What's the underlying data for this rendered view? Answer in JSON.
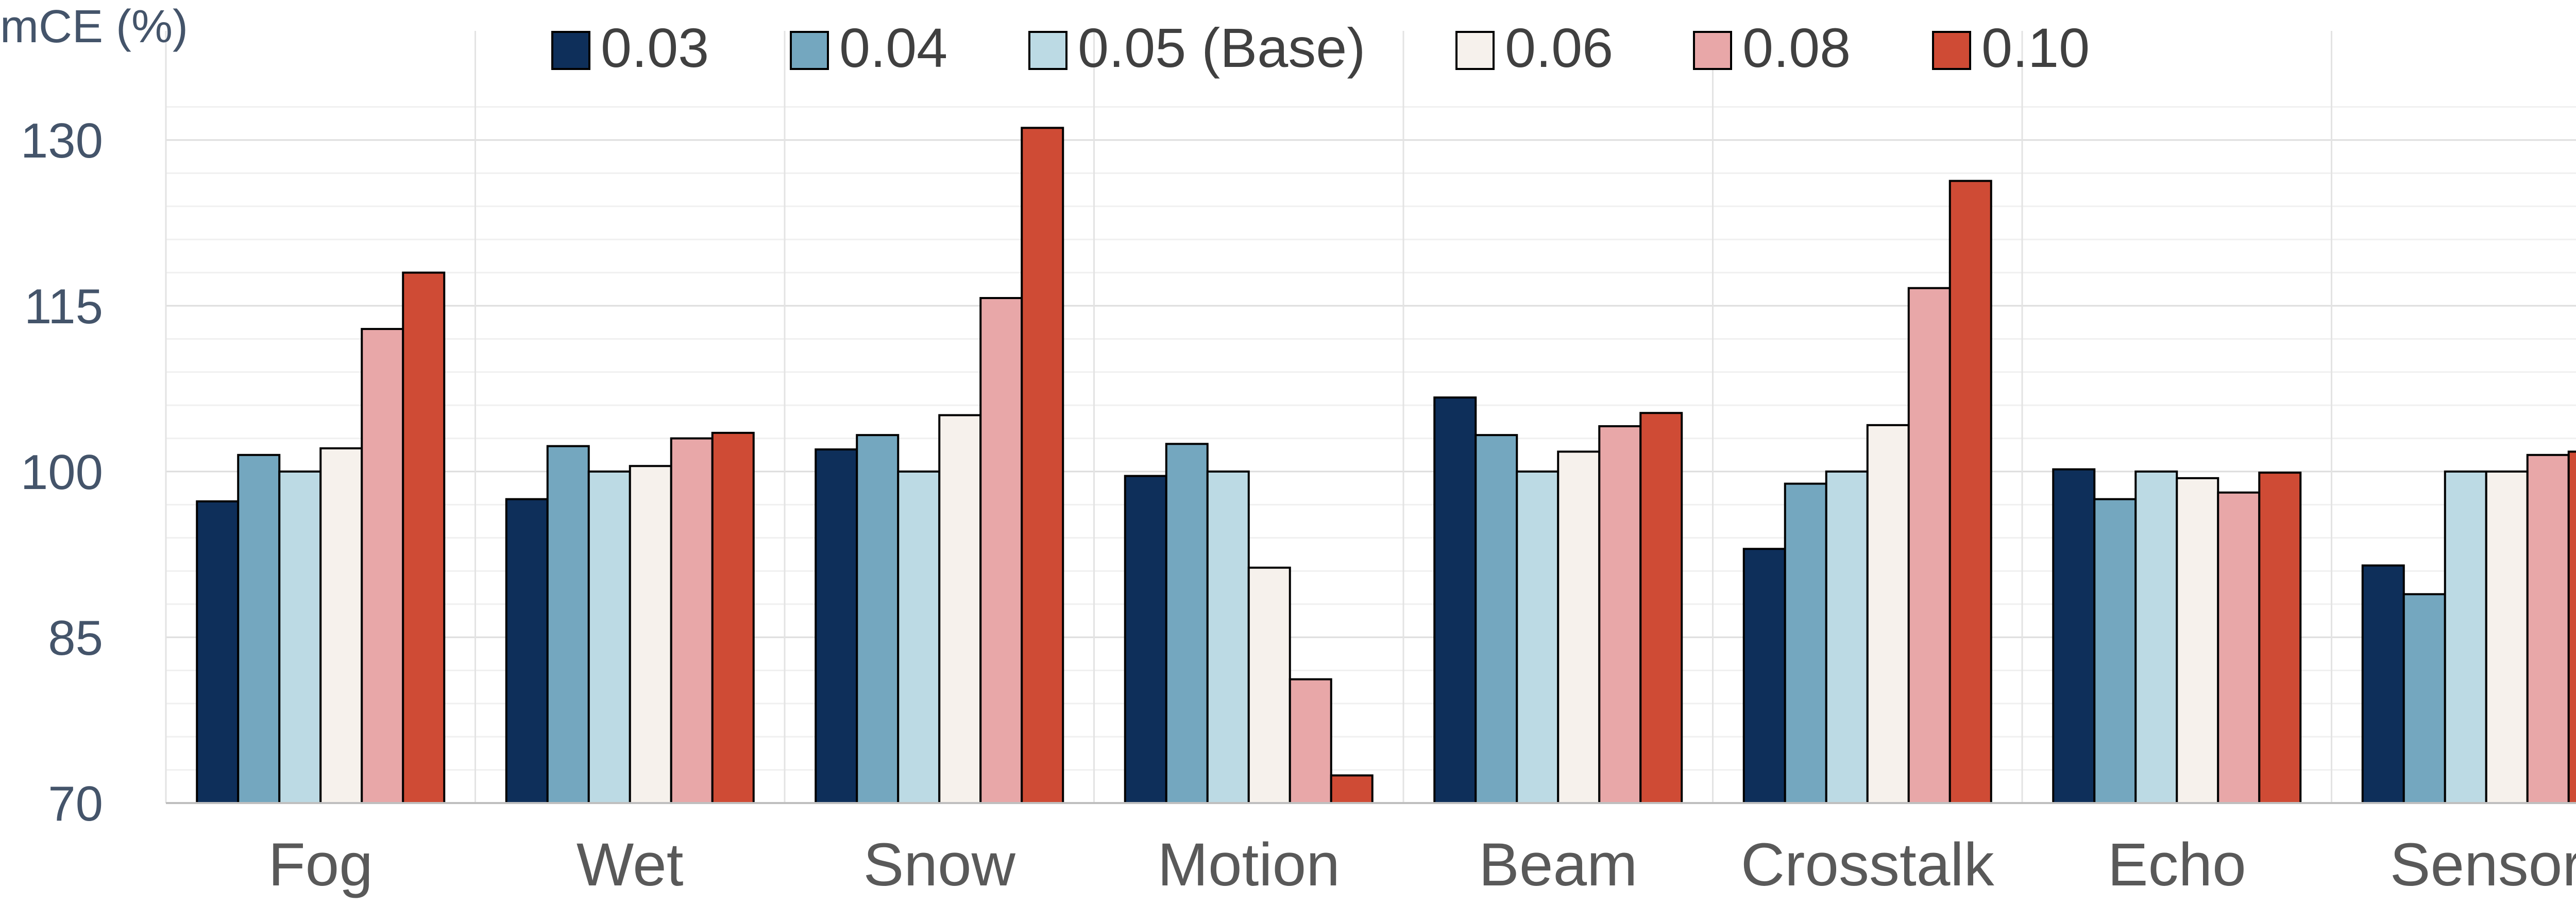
{
  "chart_data": {
    "type": "bar",
    "ylabel": "mCE (%)",
    "ylim": [
      70,
      130
    ],
    "yticks": [
      70,
      85,
      100,
      115,
      130
    ],
    "grid": true,
    "legend_position": "top",
    "categories": [
      "Fog",
      "Wet",
      "Snow",
      "Motion",
      "Beam",
      "Crosstalk",
      "Echo",
      "Sensor"
    ],
    "series": [
      {
        "name": "0.03",
        "color": "#0E2F5A",
        "values": [
          97.3,
          97.5,
          102.0,
          99.6,
          106.7,
          93.0,
          100.2,
          91.5
        ]
      },
      {
        "name": "0.04",
        "color": "#74A7BF",
        "values": [
          101.5,
          102.3,
          103.3,
          102.5,
          103.3,
          98.9,
          97.5,
          88.9
        ]
      },
      {
        "name": "0.05 (Base)",
        "color": "#BCDAE4",
        "values": [
          100.0,
          100.0,
          100.0,
          100.0,
          100.0,
          100.0,
          100.0,
          100.0
        ]
      },
      {
        "name": "0.06",
        "color": "#F6F1EC",
        "values": [
          102.1,
          100.5,
          105.1,
          91.3,
          101.8,
          104.2,
          99.4,
          100.0
        ]
      },
      {
        "name": "0.08",
        "color": "#E8A7A8",
        "values": [
          112.9,
          103.0,
          115.7,
          81.2,
          104.1,
          116.6,
          98.1,
          101.5
        ]
      },
      {
        "name": "0.10",
        "color": "#CF4B35",
        "values": [
          118.0,
          103.5,
          131.1,
          72.5,
          105.3,
          126.3,
          99.9,
          101.8
        ]
      }
    ]
  }
}
